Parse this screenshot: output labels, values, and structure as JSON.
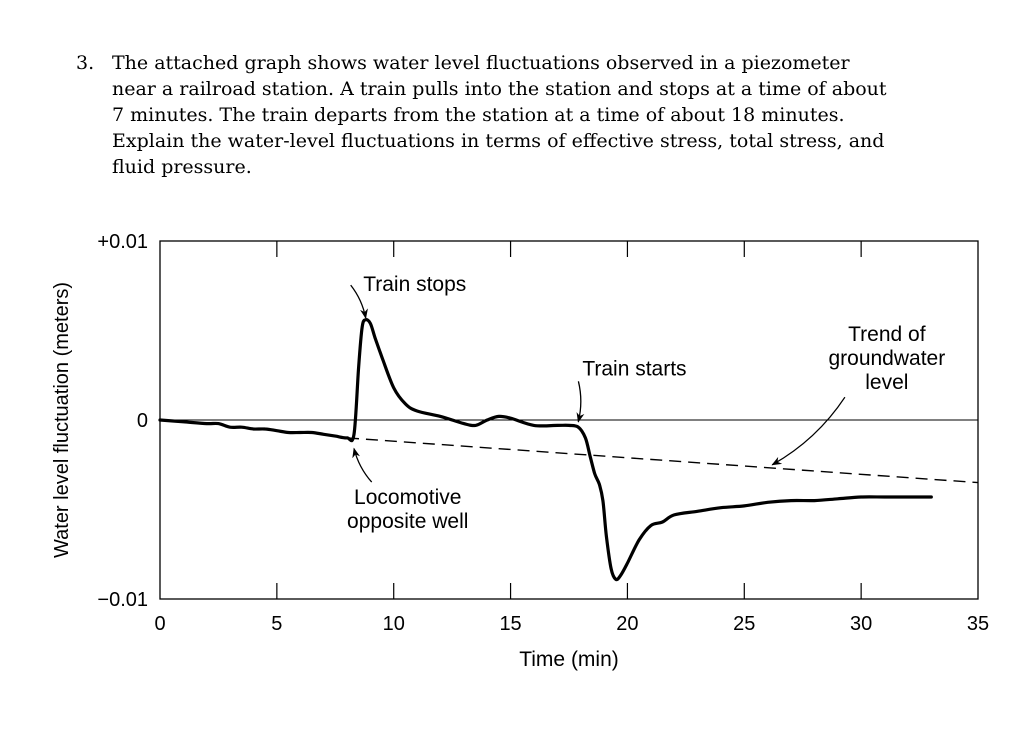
{
  "question": {
    "number": "3.",
    "lines": [
      "The attached graph shows water level fluctuations observed in a piezometer",
      "near a railroad station.  A train pulls into the station and stops at a time of about",
      "7 minutes.  The train departs from the station at a time of about 18 minutes.",
      "Explain the water-level fluctuations in terms of effective stress, total stress, and",
      "fluid pressure."
    ]
  },
  "chart_data": {
    "type": "line",
    "xlabel": "Time (min)",
    "ylabel": "Water level fluctuation (meters)",
    "xlim": [
      0,
      35
    ],
    "ylim": [
      -0.01,
      0.01
    ],
    "x_ticks": [
      0,
      5,
      10,
      15,
      20,
      25,
      30,
      35
    ],
    "x_tick_labels": [
      "0",
      "5",
      "10",
      "15",
      "20",
      "25",
      "30",
      "35"
    ],
    "y_ticks": [
      -0.01,
      0,
      0.01
    ],
    "y_tick_labels": [
      "−0.01",
      "0",
      "+0.01"
    ],
    "zero_line": true,
    "grid": false,
    "series": [
      {
        "style": "solid",
        "x": [
          0,
          1,
          2,
          2.5,
          3,
          3.5,
          4,
          4.5,
          5,
          5.5,
          6,
          6.5,
          7,
          7.5,
          8,
          8.3,
          8.5,
          8.65,
          8.8,
          9.0,
          9.2,
          9.5,
          10,
          10.5,
          11,
          12,
          13,
          13.5,
          14,
          14.5,
          15,
          16,
          17,
          17.5,
          17.9,
          18.2,
          18.4,
          18.6,
          18.8,
          18.95,
          19.1,
          19.3,
          19.5,
          19.7,
          20,
          20.5,
          21,
          21.5,
          22,
          23,
          24,
          25,
          26,
          27,
          28,
          29,
          30,
          31,
          32,
          33
        ],
        "y": [
          0,
          -0.0001,
          -0.0002,
          -0.0002,
          -0.0004,
          -0.0004,
          -0.0005,
          -0.0005,
          -0.0006,
          -0.0007,
          -0.0007,
          -0.0007,
          -0.0008,
          -0.0009,
          -0.001,
          -0.0008,
          0.003,
          0.0052,
          0.0056,
          0.0054,
          0.0046,
          0.0035,
          0.0018,
          0.0009,
          0.0005,
          0.0002,
          -0.0002,
          -0.0003,
          0,
          0.0002,
          0.0001,
          -0.0003,
          -0.0003,
          -0.0003,
          -0.0004,
          -0.001,
          -0.002,
          -0.003,
          -0.0036,
          -0.0045,
          -0.0065,
          -0.0083,
          -0.0089,
          -0.0087,
          -0.008,
          -0.0067,
          -0.0059,
          -0.0057,
          -0.0053,
          -0.0051,
          -0.0049,
          -0.0048,
          -0.0046,
          -0.0045,
          -0.0045,
          -0.0044,
          -0.0043,
          -0.0043,
          -0.0043,
          -0.0043
        ]
      },
      {
        "style": "dashed",
        "x": [
          8,
          35
        ],
        "y": [
          -0.001,
          -0.0035
        ]
      }
    ],
    "annotations": [
      {
        "text": [
          "Train stops"
        ],
        "x": 10.9,
        "y": 0.0072,
        "target_x": 8.8,
        "target_y": 0.0057,
        "anchor": "middle"
      },
      {
        "text": [
          "Train starts"
        ],
        "x": 20.3,
        "y": 0.0025,
        "target_x": 17.9,
        "target_y": -0.0001,
        "anchor": "middle"
      },
      {
        "text": [
          "Locomotive",
          "opposite well"
        ],
        "x": 10.6,
        "y": -0.0047,
        "target_x": 8.3,
        "target_y": -0.0016,
        "anchor": "middle"
      },
      {
        "text": [
          "Trend of",
          "groundwater",
          "level"
        ],
        "x": 31.1,
        "y": 0.0044,
        "target_x": 26.2,
        "target_y": -0.0025,
        "anchor": "middle"
      }
    ]
  }
}
